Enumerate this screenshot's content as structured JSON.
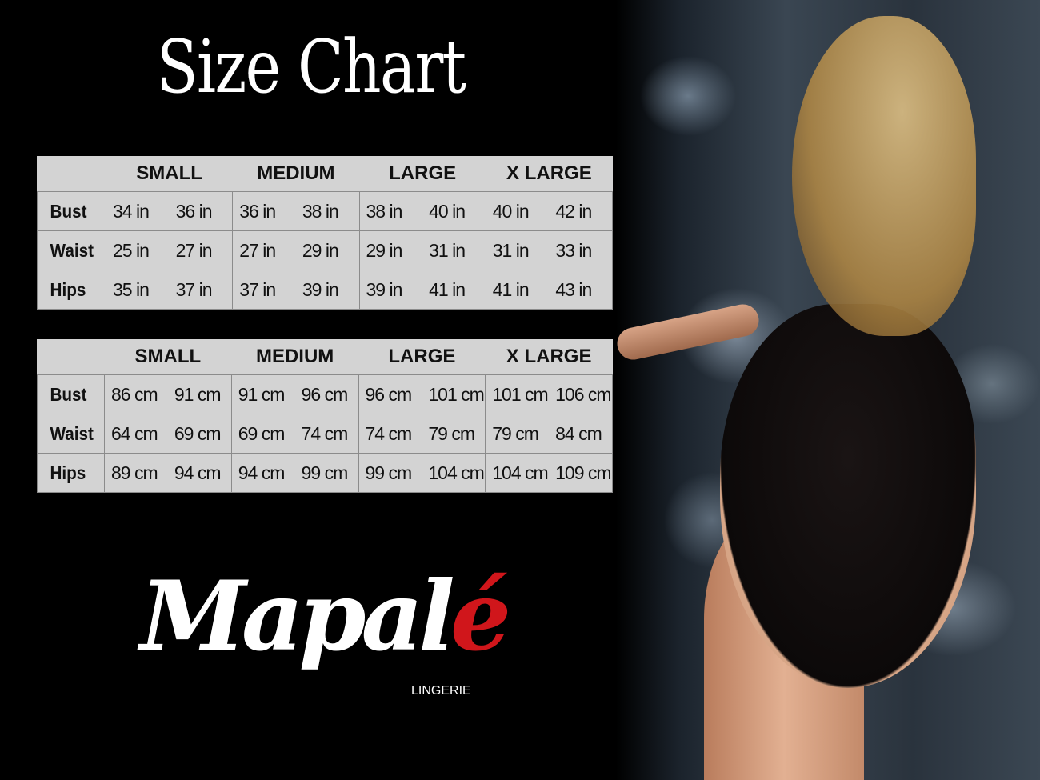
{
  "title": "Size Chart",
  "sizes": [
    "SMALL",
    "MEDIUM",
    "LARGE",
    "X LARGE"
  ],
  "tables": [
    {
      "rows": [
        {
          "label": "Bust",
          "values": [
            "34 in",
            "36 in",
            "36 in",
            "38 in",
            "38 in",
            "40 in",
            "40 in",
            "42 in"
          ]
        },
        {
          "label": "Waist",
          "values": [
            "25 in",
            "27 in",
            "27 in",
            "29 in",
            "29 in",
            "31 in",
            "31 in",
            "33 in"
          ]
        },
        {
          "label": "Hips",
          "values": [
            "35 in",
            "37 in",
            "37 in",
            "39 in",
            "39 in",
            "41 in",
            "41 in",
            "43 in"
          ]
        }
      ]
    },
    {
      "rows": [
        {
          "label": "Bust",
          "values": [
            "86 cm",
            "91 cm",
            "91 cm",
            "96 cm",
            "96 cm",
            "101 cm",
            "101 cm",
            "106 cm"
          ]
        },
        {
          "label": "Waist",
          "values": [
            "64 cm",
            "69 cm",
            "69 cm",
            "74 cm",
            "74 cm",
            "79  cm",
            "79 cm",
            "84 cm"
          ]
        },
        {
          "label": "Hips",
          "values": [
            "89 cm",
            "94 cm",
            "94 cm",
            "99 cm",
            "99 cm",
            "104 cm",
            "104 cm",
            "109 cm"
          ]
        }
      ]
    }
  ],
  "logo": {
    "name": "Mapalé",
    "wordmark_main": "Mapal",
    "wordmark_accent": "é",
    "tagline": "LINGERIE",
    "accent_color": "#d0161b"
  }
}
